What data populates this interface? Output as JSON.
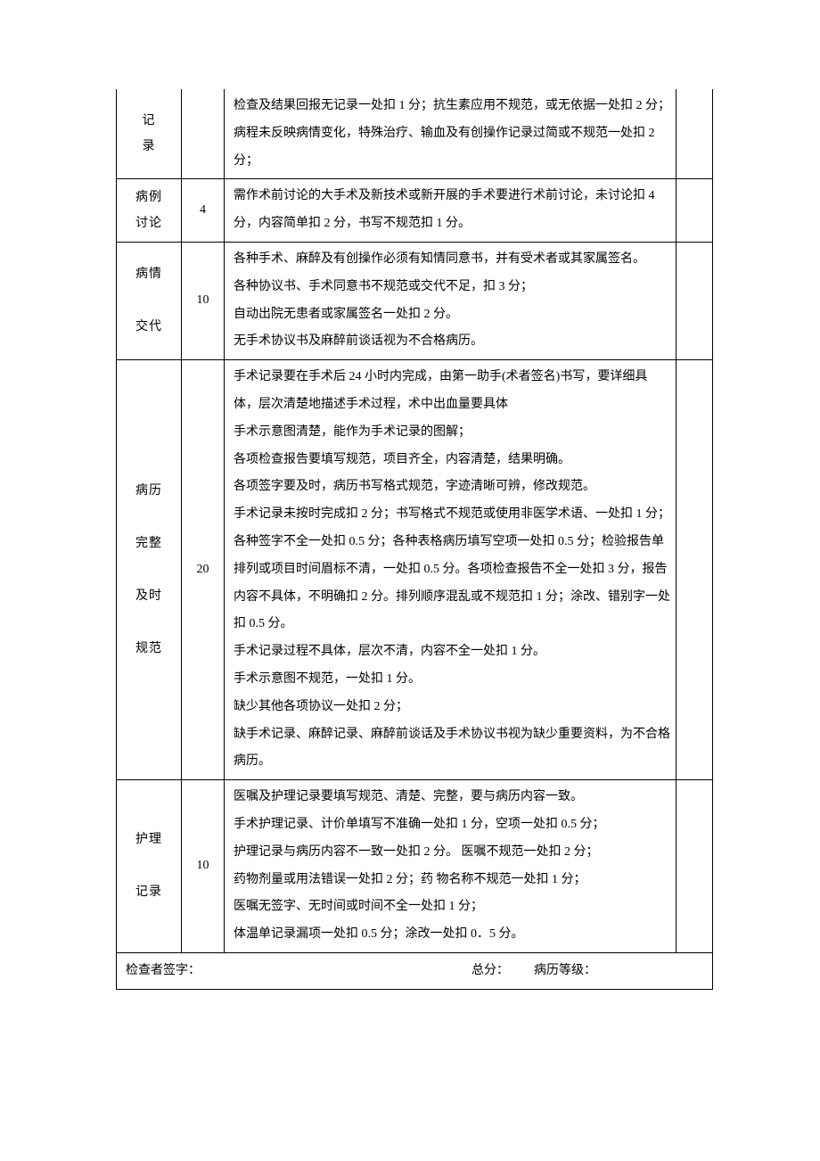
{
  "table": {
    "border_color": "#000000",
    "font_size_pt": 10.5,
    "line_height": 2.2
  },
  "rows": [
    {
      "category": "记\n录",
      "score": "",
      "content": "检查及结果回报无记录一处扣 1 分；抗生素应用不规范，或无依据一处扣 2 分；病程未反映病情变化，特殊治疗、输血及有创操作记录过简或不规范一处扣 2 分；"
    },
    {
      "category": "病例\n讨论",
      "score": "4",
      "content": "需作术前讨论的大手术及新技术或新开展的手术要进行术前讨论，未讨论扣 4 分，内容简单扣 2 分，书写不规范扣 1 分。"
    },
    {
      "category": "病情\n\n交代",
      "score": "10",
      "content": "各种手术、麻醉及有创操作必须有知情同意书，并有受术者或其家属签名。\n各种协议书、手术同意书不规范或交代不足，扣 3 分；\n自动出院无患者或家属签名一处扣 2 分。\n无手术协议书及麻醉前谈话视为不合格病历。"
    },
    {
      "category": "病历\n\n完整\n\n及时\n\n规范",
      "score": "20",
      "content": "手术记录要在手术后 24 小时内完成，由第一助手(术者签名)书写，要详细具体，层次清楚地描述手术过程，术中出血量要具体\n手术示意图清楚，能作为手术记录的图解；\n各项检查报告要填写规范，项目齐全，内容清楚，结果明确。\n各项签字要及时，病历书写格式规范，字迹清晰可辨，修改规范。\n手术记录未按时完成扣 2 分；书写格式不规范或使用非医学术语、一处扣 1 分；各种签字不全一处扣 0.5 分；各种表格病历填写空项一处扣 0.5 分；检验报告单排列或项目时间眉标不清，一处扣 0.5 分。各项检查报告不全一处扣 3 分，报告内容不具体，不明确扣 2 分。排列顺序混乱或不规范扣 1 分；涂改、错别字一处扣 0.5 分。\n手术记录过程不具体，层次不清，内容不全一处扣 1 分。\n手术示意图不规范，一处扣 1 分。\n缺少其他各项协议一处扣 2 分；\n缺手术记录、麻醉记录、麻醉前谈话及手术协议书视为缺少重要资料，为不合格病历。"
    },
    {
      "category": "护理\n\n记录",
      "score": "10",
      "content": "医嘱及护理记录要填写规范、清楚、完整，要与病历内容一致。\n手术护理记录、计价单填写不准确一处扣 1 分，空项一处扣 0.5 分；\n护理记录与病历内容不一致一处扣 2 分。 医嘱不规范一处扣 2 分；\n药物剂量或用法错误一处扣 2 分；药 物名称不规范一处扣 1 分；\n医嘱无签字、无时间或时间不全一处扣 1 分；\n体温单记录漏项一处扣 0.5 分；涂改一处扣 0．5 分。"
    }
  ],
  "footer": {
    "signature_label": "检查者签字：",
    "total_label": "总分：",
    "grade_label": "病历等级："
  }
}
